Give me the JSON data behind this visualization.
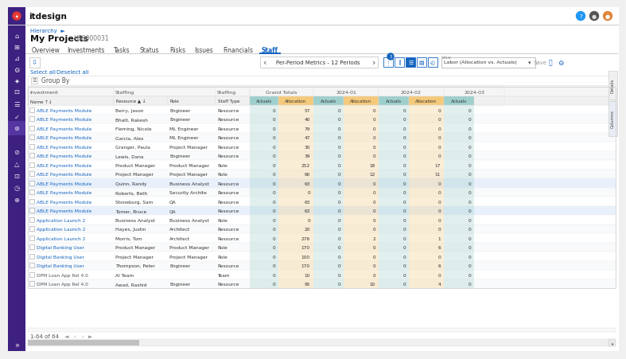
{
  "title": "itdesign",
  "logo_color": "#e53935",
  "sidebar_color": "#3d2080",
  "sidebar_highlight": "#5535a0",
  "topbar_bg": "#ffffff",
  "content_bg": "#ffffff",
  "breadcrumb": "Hierarchy  ►",
  "project_title": "My Projects",
  "project_id": "H00000031",
  "tabs": [
    "Overview",
    "Investments",
    "Tasks",
    "Status",
    "Risks",
    "Issues",
    "Financials",
    "Staff"
  ],
  "active_tab": "Staff",
  "active_tab_color": "#1565c0",
  "period_label": "Per-Period Metrics - 12 Periods",
  "view_label": "View",
  "view_value": "Labor (Allocation vs. Actuals)",
  "select_all": "Select all",
  "deselect_all": "Deselect all",
  "group_by": "Group By",
  "actuals_color": "#9ecfcc",
  "allocation_color": "#f5c97a",
  "header_bg": "#f5f5f5",
  "row_alt_color": "#eef3fb",
  "row_highlight": "#e8f0fb",
  "row_color": "#ffffff",
  "link_color": "#1565c0",
  "text_color": "#333333",
  "light_text": "#888888",
  "rows": [
    [
      "ABLE Payments Module",
      "Berry, Jason",
      "Engineer",
      "Resource",
      "0",
      "57",
      "0",
      "0",
      "0",
      "0",
      "0",
      false
    ],
    [
      "ABLE Payments Module",
      "Bhatt, Rakesh",
      "Engineer",
      "Resource",
      "0",
      "40",
      "0",
      "0",
      "0",
      "0",
      "0",
      false
    ],
    [
      "ABLE Payments Module",
      "Fleming, Nicole",
      "ML Engineer",
      "Resource",
      "0",
      "79",
      "0",
      "0",
      "0",
      "0",
      "0",
      false
    ],
    [
      "ABLE Payments Module",
      "Garcia, Alex",
      "ML Engineer",
      "Resource",
      "0",
      "47",
      "0",
      "0",
      "0",
      "0",
      "0",
      false
    ],
    [
      "ABLE Payments Module",
      "Granger, Paula",
      "Project Manager",
      "Resource",
      "0",
      "30",
      "0",
      "0",
      "0",
      "0",
      "0",
      false
    ],
    [
      "ABLE Payments Module",
      "Lewis, Dana",
      "Engineer",
      "Resource",
      "0",
      "39",
      "0",
      "0",
      "0",
      "0",
      "0",
      false
    ],
    [
      "ABLE Payments Module",
      "Product Manager",
      "Product Manager",
      "Role",
      "0",
      "252",
      "0",
      "18",
      "0",
      "17",
      "0",
      false
    ],
    [
      "ABLE Payments Module",
      "Project Manager",
      "Project Manager",
      "Role",
      "0",
      "60",
      "0",
      "12",
      "0",
      "11",
      "0",
      false
    ],
    [
      "ABLE Payments Module",
      "Quinn, Randy",
      "Business Analyst",
      "Resource",
      "0",
      "63",
      "0",
      "0",
      "0",
      "0",
      "0",
      true
    ],
    [
      "ABLE Payments Module",
      "Roberts, Beth",
      "Security Architect",
      "Resource",
      "0",
      "0",
      "0",
      "0",
      "0",
      "0",
      "0",
      false
    ],
    [
      "ABLE Payments Module",
      "Stoneburg, Sam",
      "QA",
      "Resource",
      "0",
      "63",
      "0",
      "0",
      "0",
      "0",
      "0",
      false
    ],
    [
      "ABLE Payments Module",
      "Turner, Bruce",
      "QA",
      "Resource",
      "0",
      "63",
      "0",
      "0",
      "0",
      "0",
      "0",
      true
    ],
    [
      "Application Launch 2.0",
      "Business Analyst",
      "Business Analyst",
      "Role",
      "0",
      "0",
      "0",
      "0",
      "0",
      "0",
      "0",
      false
    ],
    [
      "Application Launch 2.0",
      "Hayes, Justin",
      "Architect",
      "Resource",
      "0",
      "20",
      "0",
      "0",
      "0",
      "0",
      "0",
      false
    ],
    [
      "Application Launch 2.0",
      "Morris, Tom",
      "Architect",
      "Resource",
      "0",
      "276",
      "0",
      "2",
      "0",
      "1",
      "0",
      false
    ],
    [
      "Digital Banking User Experience",
      "Product Manager",
      "Product Manager",
      "Role",
      "0",
      "170",
      "0",
      "0",
      "0",
      "6",
      "0",
      false
    ],
    [
      "Digital Banking User Experience",
      "Project Manager",
      "Project Manager",
      "Role",
      "0",
      "100",
      "0",
      "0",
      "0",
      "0",
      "0",
      false
    ],
    [
      "Digital Banking User Experience",
      "Thompson, Peter",
      "Engineer",
      "Resource",
      "0",
      "170",
      "0",
      "0",
      "0",
      "6",
      "0",
      false
    ],
    [
      "DPM Loan App Rel 4.0",
      "AI Team",
      "",
      "Team",
      "0",
      "10",
      "0",
      "0",
      "0",
      "0",
      "0",
      false
    ],
    [
      "DPM Loan App Rel 4.0",
      "Awad, Rashid",
      "Engineer",
      "Resource",
      "0",
      "95",
      "0",
      "10",
      "0",
      "4",
      "0",
      false
    ]
  ],
  "footer": "1-64 of 64"
}
